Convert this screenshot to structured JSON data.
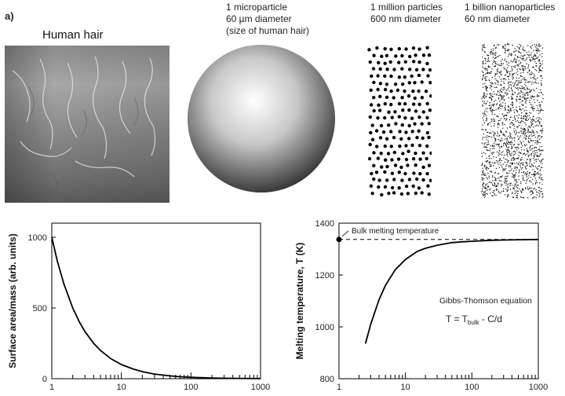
{
  "panel_label": "a)",
  "hair": {
    "label": "Human hair"
  },
  "micro": {
    "line1": "1 microparticle",
    "line2": "60 µm diameter",
    "line3": "(size of human hair)"
  },
  "million": {
    "line1": "1 million particles",
    "line2": "600 nm diameter"
  },
  "billion": {
    "line1": "1 billion nanoparticles",
    "line2": "60 nm diameter"
  },
  "chart_data": [
    {
      "type": "line",
      "xlabel": "",
      "ylabel": "Surface area/mass (arb. units)",
      "x_scale": "log",
      "xlim": [
        1,
        1000
      ],
      "ylim": [
        0,
        1100
      ],
      "x_ticks": [
        "1",
        "10",
        "100",
        "1000"
      ],
      "y_ticks": [
        "0",
        "500",
        "1000"
      ],
      "series": [
        {
          "x": [
            1,
            1.2,
            1.5,
            2,
            2.5,
            3,
            4,
            5,
            7,
            10,
            15,
            20,
            30,
            50,
            70,
            100,
            200,
            500,
            1000
          ],
          "y": [
            1000,
            833,
            667,
            500,
            400,
            333,
            250,
            200,
            143,
            100,
            67,
            50,
            33,
            20,
            14,
            10,
            5,
            2,
            1
          ]
        }
      ]
    },
    {
      "type": "line",
      "xlabel": "",
      "ylabel": "Melting temperature, T (K)",
      "x_scale": "log",
      "xlim": [
        1,
        1000
      ],
      "ylim": [
        800,
        1400
      ],
      "x_ticks": [
        "1",
        "10",
        "100",
        "1000"
      ],
      "y_ticks": [
        "800",
        "1000",
        "1200",
        "1400"
      ],
      "bulk_temperature": 1337,
      "annotations": {
        "bulk": "Bulk melting temperature",
        "equation_title": "Gibbs-Thomson equation",
        "equation_main": "T = T",
        "equation_sub": "bulk",
        "equation_tail": " - C/d"
      },
      "series": [
        {
          "x": [
            2.5,
            3,
            4,
            5,
            7,
            10,
            15,
            20,
            30,
            50,
            70,
            100,
            200,
            500,
            1000
          ],
          "y": [
            935,
            1010,
            1105,
            1160,
            1220,
            1260,
            1291,
            1303,
            1315,
            1325,
            1328,
            1330,
            1334,
            1336,
            1337
          ]
        }
      ]
    }
  ]
}
